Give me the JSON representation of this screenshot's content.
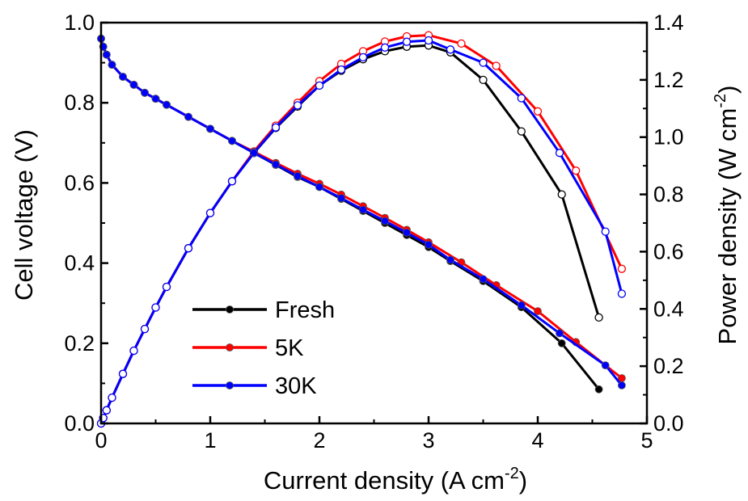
{
  "chart_data": {
    "type": "line",
    "xlabel": "Current density (A cm",
    "xlabel_sup": "-2",
    "xlabel_end": ")",
    "ylabel_left": "Cell voltage (V)",
    "ylabel_right": "Power density (W cm",
    "ylabel_right_sup": "-2",
    "ylabel_right_end": ")",
    "xlim": [
      0,
      5
    ],
    "ylim_left": [
      0.0,
      1.0
    ],
    "ylim_right": [
      0.0,
      1.4
    ],
    "x_ticks": [
      "0",
      "1",
      "2",
      "3",
      "4",
      "5"
    ],
    "y_left_ticks": [
      "0.0",
      "0.2",
      "0.4",
      "0.6",
      "0.8",
      "1.0"
    ],
    "y_right_ticks": [
      "0.0",
      "0.2",
      "0.4",
      "0.6",
      "0.8",
      "1.0",
      "1.2",
      "1.4"
    ],
    "legend_position": "lower-left",
    "series": [
      {
        "name": "Fresh",
        "color": "#000000",
        "polarization": [
          [
            0.0,
            0.96
          ],
          [
            0.02,
            0.94
          ],
          [
            0.05,
            0.92
          ],
          [
            0.1,
            0.895
          ],
          [
            0.2,
            0.865
          ],
          [
            0.3,
            0.845
          ],
          [
            0.4,
            0.825
          ],
          [
            0.5,
            0.81
          ],
          [
            0.6,
            0.795
          ],
          [
            0.8,
            0.765
          ],
          [
            1.0,
            0.735
          ],
          [
            1.2,
            0.705
          ],
          [
            1.4,
            0.675
          ],
          [
            1.6,
            0.645
          ],
          [
            1.8,
            0.615
          ],
          [
            2.0,
            0.59
          ],
          [
            2.2,
            0.56
          ],
          [
            2.4,
            0.53
          ],
          [
            2.6,
            0.5
          ],
          [
            2.8,
            0.47
          ],
          [
            3.0,
            0.44
          ],
          [
            3.2,
            0.405
          ],
          [
            3.5,
            0.355
          ],
          [
            3.85,
            0.29
          ],
          [
            4.22,
            0.2
          ],
          [
            4.56,
            0.085
          ]
        ],
        "power": [
          [
            0.0,
            0.0
          ],
          [
            0.02,
            0.019
          ],
          [
            0.05,
            0.046
          ],
          [
            0.1,
            0.09
          ],
          [
            0.2,
            0.173
          ],
          [
            0.3,
            0.254
          ],
          [
            0.4,
            0.33
          ],
          [
            0.5,
            0.405
          ],
          [
            0.6,
            0.477
          ],
          [
            0.8,
            0.612
          ],
          [
            1.0,
            0.735
          ],
          [
            1.2,
            0.846
          ],
          [
            1.4,
            0.945
          ],
          [
            1.6,
            1.032
          ],
          [
            1.8,
            1.107
          ],
          [
            2.0,
            1.18
          ],
          [
            2.2,
            1.232
          ],
          [
            2.4,
            1.272
          ],
          [
            2.6,
            1.3
          ],
          [
            2.8,
            1.316
          ],
          [
            3.0,
            1.32
          ],
          [
            3.2,
            1.296
          ],
          [
            3.5,
            1.2
          ],
          [
            3.85,
            1.02
          ],
          [
            4.22,
            0.8
          ],
          [
            4.56,
            0.37
          ]
        ]
      },
      {
        "name": "5K",
        "color": "#ff0000",
        "polarization": [
          [
            0.0,
            0.96
          ],
          [
            0.02,
            0.94
          ],
          [
            0.05,
            0.92
          ],
          [
            0.1,
            0.895
          ],
          [
            0.2,
            0.865
          ],
          [
            0.3,
            0.845
          ],
          [
            0.4,
            0.825
          ],
          [
            0.5,
            0.81
          ],
          [
            0.6,
            0.795
          ],
          [
            0.8,
            0.765
          ],
          [
            1.0,
            0.735
          ],
          [
            1.2,
            0.705
          ],
          [
            1.4,
            0.678
          ],
          [
            1.6,
            0.65
          ],
          [
            1.8,
            0.623
          ],
          [
            2.0,
            0.598
          ],
          [
            2.2,
            0.571
          ],
          [
            2.4,
            0.542
          ],
          [
            2.6,
            0.513
          ],
          [
            2.8,
            0.483
          ],
          [
            3.0,
            0.452
          ],
          [
            3.3,
            0.402
          ],
          [
            3.62,
            0.345
          ],
          [
            4.0,
            0.28
          ],
          [
            4.35,
            0.203
          ],
          [
            4.77,
            0.113
          ]
        ],
        "power": [
          [
            0.0,
            0.0
          ],
          [
            0.02,
            0.019
          ],
          [
            0.05,
            0.046
          ],
          [
            0.1,
            0.09
          ],
          [
            0.2,
            0.173
          ],
          [
            0.3,
            0.254
          ],
          [
            0.4,
            0.33
          ],
          [
            0.5,
            0.405
          ],
          [
            0.6,
            0.477
          ],
          [
            0.8,
            0.612
          ],
          [
            1.0,
            0.735
          ],
          [
            1.2,
            0.846
          ],
          [
            1.4,
            0.95
          ],
          [
            1.6,
            1.04
          ],
          [
            1.8,
            1.12
          ],
          [
            2.0,
            1.196
          ],
          [
            2.2,
            1.256
          ],
          [
            2.4,
            1.3
          ],
          [
            2.6,
            1.334
          ],
          [
            2.8,
            1.352
          ],
          [
            3.0,
            1.356
          ],
          [
            3.3,
            1.327
          ],
          [
            3.62,
            1.249
          ],
          [
            4.0,
            1.09
          ],
          [
            4.35,
            0.883
          ],
          [
            4.77,
            0.54
          ]
        ]
      },
      {
        "name": "30K",
        "color": "#0000ff",
        "polarization": [
          [
            0.0,
            0.96
          ],
          [
            0.02,
            0.94
          ],
          [
            0.05,
            0.92
          ],
          [
            0.1,
            0.895
          ],
          [
            0.2,
            0.865
          ],
          [
            0.3,
            0.845
          ],
          [
            0.4,
            0.825
          ],
          [
            0.5,
            0.81
          ],
          [
            0.6,
            0.795
          ],
          [
            0.8,
            0.765
          ],
          [
            1.0,
            0.735
          ],
          [
            1.2,
            0.705
          ],
          [
            1.4,
            0.675
          ],
          [
            1.6,
            0.646
          ],
          [
            1.8,
            0.617
          ],
          [
            2.0,
            0.59
          ],
          [
            2.2,
            0.562
          ],
          [
            2.4,
            0.533
          ],
          [
            2.6,
            0.505
          ],
          [
            2.8,
            0.476
          ],
          [
            3.0,
            0.446
          ],
          [
            3.2,
            0.408
          ],
          [
            3.5,
            0.36
          ],
          [
            3.85,
            0.295
          ],
          [
            4.2,
            0.225
          ],
          [
            4.62,
            0.145
          ],
          [
            4.77,
            0.095
          ]
        ],
        "power": [
          [
            0.0,
            0.0
          ],
          [
            0.02,
            0.019
          ],
          [
            0.05,
            0.046
          ],
          [
            0.1,
            0.09
          ],
          [
            0.2,
            0.173
          ],
          [
            0.3,
            0.254
          ],
          [
            0.4,
            0.33
          ],
          [
            0.5,
            0.405
          ],
          [
            0.6,
            0.477
          ],
          [
            0.8,
            0.612
          ],
          [
            1.0,
            0.735
          ],
          [
            1.2,
            0.846
          ],
          [
            1.4,
            0.945
          ],
          [
            1.6,
            1.034
          ],
          [
            1.8,
            1.111
          ],
          [
            2.0,
            1.18
          ],
          [
            2.2,
            1.236
          ],
          [
            2.4,
            1.279
          ],
          [
            2.6,
            1.313
          ],
          [
            2.8,
            1.333
          ],
          [
            3.0,
            1.338
          ],
          [
            3.2,
            1.306
          ],
          [
            3.5,
            1.26
          ],
          [
            3.85,
            1.136
          ],
          [
            4.2,
            0.945
          ],
          [
            4.62,
            0.67
          ],
          [
            4.77,
            0.453
          ]
        ]
      }
    ]
  }
}
